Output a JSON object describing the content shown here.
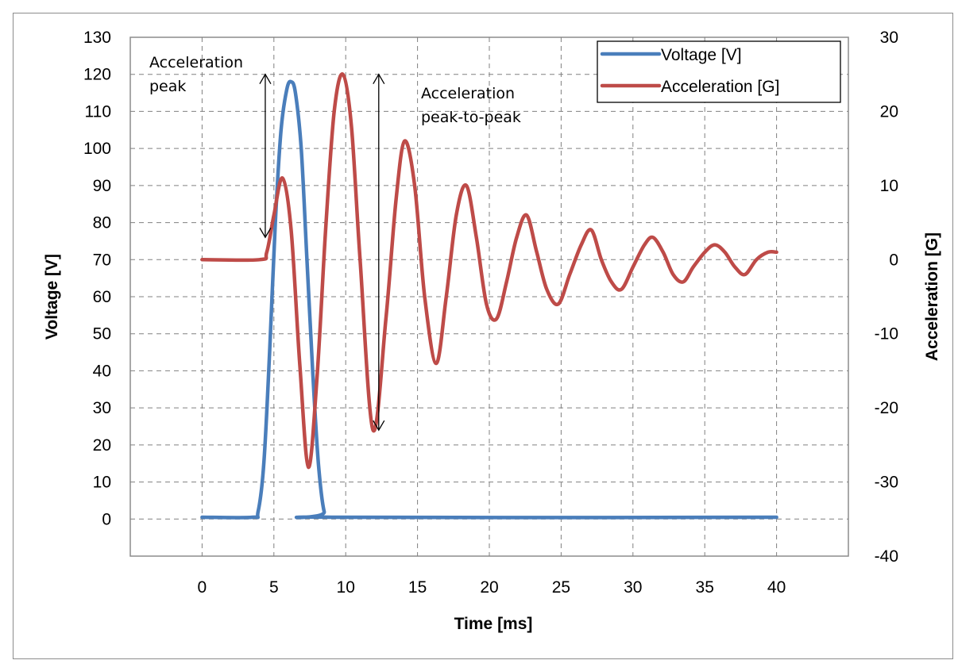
{
  "chart_data": {
    "type": "line",
    "xlabel": "Time [ms]",
    "ylabel_left": "Voltage [V]",
    "ylabel_right": "Acceleration  [G]",
    "xlim": [
      -5,
      45
    ],
    "ylim_left": [
      -10,
      130
    ],
    "ylim_right": [
      -40,
      30
    ],
    "xticks": [
      0,
      5,
      10,
      15,
      20,
      25,
      30,
      35,
      40
    ],
    "yticks_left": [
      0,
      10,
      20,
      30,
      40,
      50,
      60,
      70,
      80,
      90,
      100,
      110,
      120,
      130
    ],
    "yticks_right": [
      -40,
      -30,
      -20,
      -10,
      0,
      10,
      20,
      30
    ],
    "grid": true,
    "legend_position": "top-right",
    "series": [
      {
        "name": "Voltage [V]",
        "axis": "left",
        "color": "#4a7ebb",
        "x": [
          0,
          3.5,
          3.9,
          4.3,
          4.7,
          5.1,
          5.5,
          5.9,
          6.2,
          6.5,
          6.9,
          7.3,
          7.7,
          8.1,
          8.5,
          9,
          40
        ],
        "y": [
          0.5,
          0.5,
          2,
          15,
          45,
          80,
          105,
          116,
          118,
          115,
          100,
          70,
          40,
          15,
          2,
          0.5,
          0.5
        ]
      },
      {
        "name": "Acceleration [G]",
        "axis": "right",
        "color": "#be4b48",
        "x": [
          0,
          4,
          4.5,
          5.0,
          5.6,
          6.2,
          6.8,
          7.4,
          8.0,
          8.6,
          9.2,
          9.8,
          10.4,
          11.0,
          11.9,
          12.8,
          13.5,
          14.1,
          14.8,
          15.5,
          16.3,
          17.0,
          17.7,
          18.4,
          19.1,
          19.8,
          20.5,
          21.2,
          21.9,
          22.6,
          23.3,
          24.0,
          24.8,
          25.6,
          26.4,
          27.1,
          27.8,
          28.5,
          29.2,
          30.0,
          30.8,
          31.4,
          32.1,
          32.8,
          33.5,
          34.2,
          35.0,
          35.7,
          36.4,
          37.1,
          37.8,
          38.6,
          39.4,
          40
        ],
        "y": [
          0,
          0,
          1,
          6,
          11,
          4,
          -14,
          -28,
          -16,
          4,
          20,
          25,
          18,
          0,
          -23,
          -8,
          8,
          16,
          10,
          -5,
          -14,
          -5,
          6,
          10,
          3,
          -6,
          -8,
          -3,
          3,
          6,
          1,
          -4,
          -6,
          -2,
          2,
          4,
          0,
          -3,
          -4,
          -1,
          2,
          3,
          1,
          -2,
          -3,
          -1,
          1,
          2,
          1,
          -1,
          -2,
          0,
          1,
          1
        ]
      }
    ],
    "annotations": [
      {
        "lines": [
          "Acceleration",
          "peak"
        ],
        "arrow": {
          "x": 4.4,
          "from": 25,
          "to": 3
        }
      },
      {
        "lines": [
          "Acceleration",
          "peak-to-peak"
        ],
        "arrow": {
          "x": 12.3,
          "from": 25,
          "to": -23
        }
      }
    ]
  }
}
